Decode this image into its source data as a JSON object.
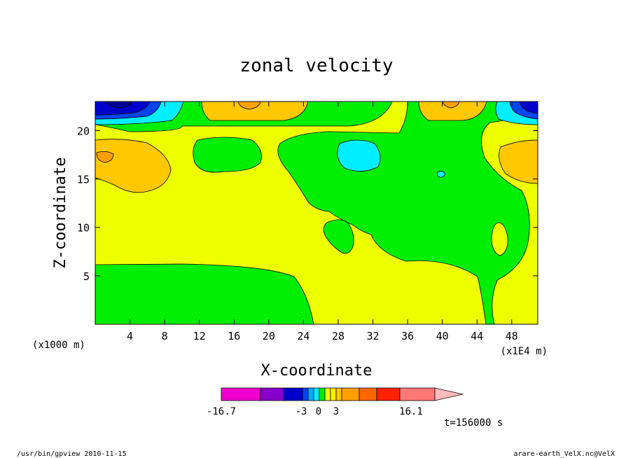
{
  "footer": {
    "left": "/usr/bin/gpview  2010-11-15",
    "right": "arare-earth_VelX.nc@VelX"
  },
  "colors": {
    "yellow": "#eeff00",
    "green": "#00ee00",
    "orange": "#ffc800",
    "dark_orange": "#ffa000",
    "cyan": "#00eeff",
    "blue": "#0044ee",
    "dark_blue": "#0000cc",
    "navy": "#000099"
  },
  "chart_data": {
    "type": "contour",
    "title": "zonal velocity",
    "xlabel": "X-coordinate",
    "ylabel": "Z-coordinate",
    "x_scale_note": "(x1E4 m)",
    "y_scale_note": "(x1000 m)",
    "time_label": "t=156000 s",
    "xlim": [
      0,
      51
    ],
    "ylim": [
      0,
      23
    ],
    "x_ticks": [
      4,
      8,
      12,
      16,
      20,
      24,
      28,
      32,
      36,
      40,
      44,
      48
    ],
    "y_ticks": [
      5,
      10,
      15,
      20
    ],
    "colorbar": {
      "min_label": "-16.7",
      "max_label": "16.1",
      "tick_labels": [
        "-3",
        "0",
        "3"
      ],
      "segments": [
        {
          "lo": -16.7,
          "hi": -11,
          "color": "#ee00cc"
        },
        {
          "lo": -11,
          "hi": -7,
          "color": "#8800cc"
        },
        {
          "lo": -7,
          "hi": -4,
          "color": "#0000cc"
        },
        {
          "lo": -4,
          "hi": -3,
          "color": "#0044ee"
        },
        {
          "lo": -3,
          "hi": -2,
          "color": "#00aaff"
        },
        {
          "lo": -2,
          "hi": -1,
          "color": "#00eeff"
        },
        {
          "lo": -1,
          "hi": 0,
          "color": "#00ee00"
        },
        {
          "lo": 0,
          "hi": 1,
          "color": "#eeff00"
        },
        {
          "lo": 1,
          "hi": 2,
          "color": "#ffee00"
        },
        {
          "lo": 2,
          "hi": 3,
          "color": "#ffc800"
        },
        {
          "lo": 3,
          "hi": 5,
          "color": "#ffa000"
        },
        {
          "lo": 5,
          "hi": 8,
          "color": "#ff6600"
        },
        {
          "lo": 8,
          "hi": 11,
          "color": "#ff2200"
        },
        {
          "lo": 11,
          "hi": 16.1,
          "color": "#ff7777"
        }
      ],
      "arrow_color": "#ffbbbb"
    }
  }
}
